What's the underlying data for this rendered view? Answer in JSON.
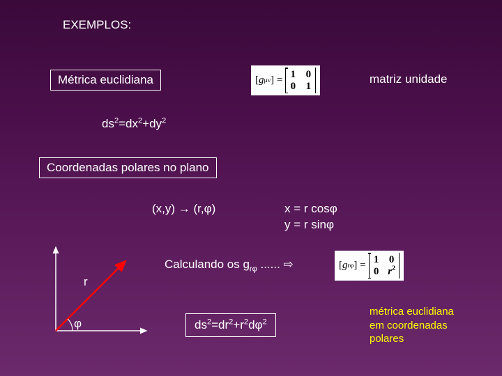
{
  "header": {
    "title": "EXEMPLOS:"
  },
  "metric": {
    "box_label": "Métrica euclidiana",
    "matrix_label": "matriz unidade",
    "matrix_lhs_var": "g",
    "matrix_lhs_sub": "μν",
    "matrix_m": [
      [
        "1",
        "0"
      ],
      [
        "0",
        "1"
      ]
    ],
    "line_element_html": "ds<sup>2</sup>=dx<sup>2</sup>+dy<sup>2</sup>"
  },
  "polar": {
    "box_label": "Coordenadas polares no plano",
    "transform_html": "(x,y) → (r,φ)",
    "coord1_html": "x = r cosφ",
    "coord2_html": "y = r sinφ",
    "calc_html": "Calculando os g<sub>rφ</sub> ...... ⇨",
    "result_box_html": "ds<sup>2</sup>=dr<sup>2</sup>+r<sup>2</sup>dφ<sup>2</sup>",
    "result_matrix_lhs_var": "g",
    "result_matrix_lhs_sub": "rφ",
    "result_matrix_m": [
      [
        "1",
        "0"
      ],
      [
        "0",
        "r"
      ]
    ],
    "result_matrix_exp": "2",
    "result_note_l1": "métrica euclidiana",
    "result_note_l2": "em coordenadas",
    "result_note_l3": "polares",
    "axis_r": "r",
    "axis_phi": "φ"
  },
  "colors": {
    "text": "#ffffff",
    "accent": "#ffff00",
    "box_border": "#ffffff",
    "axis_color": "#ffffff",
    "arrow_color": "#ff0000"
  }
}
